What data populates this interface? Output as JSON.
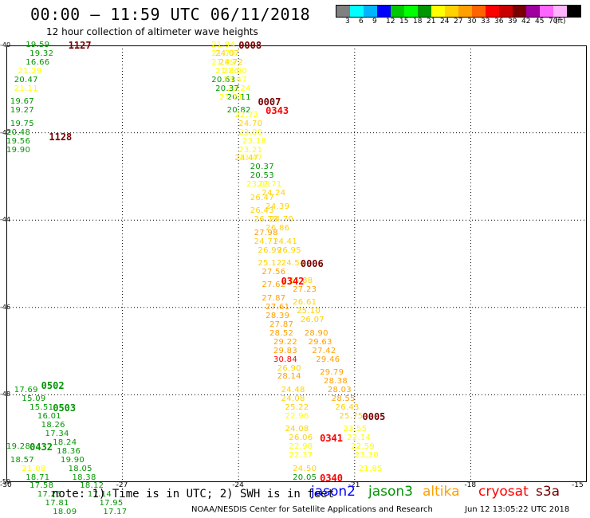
{
  "header": {
    "title": "00:00 – 11:59 UTC 06/11/2018",
    "subtitle": "12 hour collection of altimeter wave heights"
  },
  "legend": {
    "colors": [
      "#808080",
      "#00ffff",
      "#00b4ff",
      "#0000ff",
      "#00c800",
      "#00ff00",
      "#009600",
      "#ffff00",
      "#ffd200",
      "#ffa000",
      "#ff6400",
      "#ff0000",
      "#c80000",
      "#780000",
      "#a000a0",
      "#ff64ff",
      "#ffb4ff",
      "#000000"
    ],
    "labels": [
      "3",
      "6",
      "9",
      "12",
      "15",
      "18",
      "21",
      "24",
      "27",
      "30",
      "33",
      "36",
      "39",
      "42",
      "45",
      "70",
      "(ft)"
    ]
  },
  "axes": {
    "lat_labels": [
      "-40",
      "-42",
      "-44",
      "-46",
      "-48",
      "-50"
    ],
    "lon_labels": [
      "-30",
      "-27",
      "-24",
      "-21",
      "-18",
      "-15"
    ]
  },
  "observations": [
    {
      "lon": -29.5,
      "lat": -40.0,
      "v": "19.59",
      "c": "#009600"
    },
    {
      "lon": -29.4,
      "lat": -40.2,
      "v": "19.32",
      "c": "#009600"
    },
    {
      "lon": -29.5,
      "lat": -40.4,
      "v": "16.66",
      "c": "#009600"
    },
    {
      "lon": -29.7,
      "lat": -40.6,
      "v": "21.29",
      "c": "#ffff00"
    },
    {
      "lon": -29.8,
      "lat": -40.8,
      "v": "20.47",
      "c": "#009600"
    },
    {
      "lon": -29.8,
      "lat": -41.0,
      "v": "21.11",
      "c": "#ffff00"
    },
    {
      "lon": -29.9,
      "lat": -41.3,
      "v": "19.67",
      "c": "#009600"
    },
    {
      "lon": -29.9,
      "lat": -41.5,
      "v": "19.27",
      "c": "#009600"
    },
    {
      "lon": -29.9,
      "lat": -41.8,
      "v": "19.75",
      "c": "#009600"
    },
    {
      "lon": -30.0,
      "lat": -42.0,
      "v": "20.48",
      "c": "#009600"
    },
    {
      "lon": -30.0,
      "lat": -42.2,
      "v": "19.56",
      "c": "#009600"
    },
    {
      "lon": -30.0,
      "lat": -42.4,
      "v": "19.90",
      "c": "#009600"
    },
    {
      "lon": -24.7,
      "lat": -40.0,
      "v": "21.94",
      "c": "#ffff00"
    },
    {
      "lon": -24.7,
      "lat": -40.2,
      "v": "21.79",
      "c": "#ffff00"
    },
    {
      "lon": -24.6,
      "lat": -40.2,
      "v": "24.07",
      "c": "#ffd200"
    },
    {
      "lon": -24.5,
      "lat": -40.4,
      "v": "24.72",
      "c": "#ffd200"
    },
    {
      "lon": -24.7,
      "lat": -40.4,
      "v": "21.89",
      "c": "#ffff00"
    },
    {
      "lon": -24.6,
      "lat": -40.6,
      "v": "21.86",
      "c": "#ffff00"
    },
    {
      "lon": -24.4,
      "lat": -40.6,
      "v": "22.00",
      "c": "#ffff00"
    },
    {
      "lon": -24.7,
      "lat": -40.8,
      "v": "20.63",
      "c": "#009600"
    },
    {
      "lon": -24.4,
      "lat": -40.8,
      "v": "23.47",
      "c": "#ffff00"
    },
    {
      "lon": -24.3,
      "lat": -41.0,
      "v": "23.24",
      "c": "#ffff00"
    },
    {
      "lon": -24.6,
      "lat": -41.0,
      "v": "20.37",
      "c": "#009600"
    },
    {
      "lon": -24.3,
      "lat": -41.2,
      "v": "20.11",
      "c": "#009600"
    },
    {
      "lon": -24.5,
      "lat": -41.2,
      "v": "21.21",
      "c": "#ffff00"
    },
    {
      "lon": -24.3,
      "lat": -41.5,
      "v": "20.82",
      "c": "#009600"
    },
    {
      "lon": -24.1,
      "lat": -41.6,
      "v": "22.72",
      "c": "#ffff00"
    },
    {
      "lon": -24.0,
      "lat": -41.8,
      "v": "24.70",
      "c": "#ffd200"
    },
    {
      "lon": -24.0,
      "lat": -42.0,
      "v": "23.00",
      "c": "#ffff00"
    },
    {
      "lon": -23.9,
      "lat": -42.2,
      "v": "23.18",
      "c": "#ffff00"
    },
    {
      "lon": -24.0,
      "lat": -42.4,
      "v": "23.21",
      "c": "#ffff00"
    },
    {
      "lon": -24.1,
      "lat": -42.6,
      "v": "24.47",
      "c": "#ffd200"
    },
    {
      "lon": -24.0,
      "lat": -42.6,
      "v": "23.47",
      "c": "#ffff00"
    },
    {
      "lon": -23.7,
      "lat": -42.8,
      "v": "20.37",
      "c": "#009600"
    },
    {
      "lon": -23.7,
      "lat": -43.0,
      "v": "20.53",
      "c": "#009600"
    },
    {
      "lon": -23.8,
      "lat": -43.2,
      "v": "23.09",
      "c": "#ffff00"
    },
    {
      "lon": -23.5,
      "lat": -43.2,
      "v": "22.71",
      "c": "#ffff00"
    },
    {
      "lon": -23.4,
      "lat": -43.4,
      "v": "24.24",
      "c": "#ffd200"
    },
    {
      "lon": -23.7,
      "lat": -43.5,
      "v": "26.47",
      "c": "#ffd200"
    },
    {
      "lon": -23.3,
      "lat": -43.7,
      "v": "24.39",
      "c": "#ffd200"
    },
    {
      "lon": -23.7,
      "lat": -43.8,
      "v": "26.43",
      "c": "#ffd200"
    },
    {
      "lon": -23.2,
      "lat": -44.0,
      "v": "24.70",
      "c": "#ffd200"
    },
    {
      "lon": -23.6,
      "lat": -44.0,
      "v": "26.73",
      "c": "#ffd200"
    },
    {
      "lon": -23.3,
      "lat": -44.2,
      "v": "26.86",
      "c": "#ffd200"
    },
    {
      "lon": -23.6,
      "lat": -44.3,
      "v": "27.98",
      "c": "#ffa000"
    },
    {
      "lon": -23.1,
      "lat": -44.5,
      "v": "24.41",
      "c": "#ffd200"
    },
    {
      "lon": -23.6,
      "lat": -44.5,
      "v": "24.71",
      "c": "#ffd200"
    },
    {
      "lon": -23.0,
      "lat": -44.7,
      "v": "26.95",
      "c": "#ffd200"
    },
    {
      "lon": -23.5,
      "lat": -44.7,
      "v": "26.99",
      "c": "#ffd200"
    },
    {
      "lon": -22.9,
      "lat": -45.0,
      "v": "24.54",
      "c": "#ffd200"
    },
    {
      "lon": -23.5,
      "lat": -45.0,
      "v": "25.12",
      "c": "#ffd200"
    },
    {
      "lon": -23.4,
      "lat": -45.2,
      "v": "27.56",
      "c": "#ffa000"
    },
    {
      "lon": -22.7,
      "lat": -45.4,
      "v": "25.88",
      "c": "#ffd200"
    },
    {
      "lon": -23.4,
      "lat": -45.5,
      "v": "27.62",
      "c": "#ffa000"
    },
    {
      "lon": -22.6,
      "lat": -45.6,
      "v": "27.23",
      "c": "#ffa000"
    },
    {
      "lon": -23.4,
      "lat": -45.8,
      "v": "27.87",
      "c": "#ffa000"
    },
    {
      "lon": -22.6,
      "lat": -45.9,
      "v": "26.61",
      "c": "#ffd200"
    },
    {
      "lon": -23.3,
      "lat": -46.0,
      "v": "27.61",
      "c": "#ffa000"
    },
    {
      "lon": -22.5,
      "lat": -46.1,
      "v": "25.10",
      "c": "#ffd200"
    },
    {
      "lon": -23.3,
      "lat": -46.2,
      "v": "28.39",
      "c": "#ffa000"
    },
    {
      "lon": -22.4,
      "lat": -46.3,
      "v": "26.07",
      "c": "#ffd200"
    },
    {
      "lon": -23.2,
      "lat": -46.4,
      "v": "27.87",
      "c": "#ffa000"
    },
    {
      "lon": -22.3,
      "lat": -46.6,
      "v": "28.90",
      "c": "#ffa000"
    },
    {
      "lon": -23.2,
      "lat": -46.6,
      "v": "28.52",
      "c": "#ffa000"
    },
    {
      "lon": -22.2,
      "lat": -46.8,
      "v": "29.63",
      "c": "#ffa000"
    },
    {
      "lon": -23.1,
      "lat": -46.8,
      "v": "29.22",
      "c": "#ffa000"
    },
    {
      "lon": -22.1,
      "lat": -47.0,
      "v": "27.42",
      "c": "#ffa000"
    },
    {
      "lon": -23.1,
      "lat": -47.0,
      "v": "29.83",
      "c": "#ffa000"
    },
    {
      "lon": -23.1,
      "lat": -47.2,
      "v": "30.84",
      "c": "#ff0000"
    },
    {
      "lon": -22.0,
      "lat": -47.2,
      "v": "29.46",
      "c": "#ffa000"
    },
    {
      "lon": -23.0,
      "lat": -47.4,
      "v": "26.90",
      "c": "#ffd200"
    },
    {
      "lon": -21.9,
      "lat": -47.5,
      "v": "29.79",
      "c": "#ffa000"
    },
    {
      "lon": -23.0,
      "lat": -47.6,
      "v": "28.14",
      "c": "#ffa000"
    },
    {
      "lon": -21.8,
      "lat": -47.7,
      "v": "28.38",
      "c": "#ffa000"
    },
    {
      "lon": -22.9,
      "lat": -47.9,
      "v": "24.48",
      "c": "#ffd200"
    },
    {
      "lon": -21.7,
      "lat": -47.9,
      "v": "28.03",
      "c": "#ffa000"
    },
    {
      "lon": -22.9,
      "lat": -48.1,
      "v": "24.08",
      "c": "#ffd200"
    },
    {
      "lon": -21.6,
      "lat": -48.1,
      "v": "28.55",
      "c": "#ffa000"
    },
    {
      "lon": -22.8,
      "lat": -48.3,
      "v": "25.22",
      "c": "#ffd200"
    },
    {
      "lon": -21.5,
      "lat": -48.3,
      "v": "26.43",
      "c": "#ffd200"
    },
    {
      "lon": -22.8,
      "lat": -48.5,
      "v": "22.96",
      "c": "#ffff00"
    },
    {
      "lon": -21.4,
      "lat": -48.5,
      "v": "25.75",
      "c": "#ffd200"
    },
    {
      "lon": -22.8,
      "lat": -48.8,
      "v": "24.08",
      "c": "#ffd200"
    },
    {
      "lon": -21.3,
      "lat": -48.8,
      "v": "23.55",
      "c": "#ffff00"
    },
    {
      "lon": -22.7,
      "lat": -49.0,
      "v": "26.06",
      "c": "#ffd200"
    },
    {
      "lon": -21.2,
      "lat": -49.0,
      "v": "22.14",
      "c": "#ffff00"
    },
    {
      "lon": -22.7,
      "lat": -49.2,
      "v": "22.98",
      "c": "#ffff00"
    },
    {
      "lon": -21.1,
      "lat": -49.2,
      "v": "22.59",
      "c": "#ffff00"
    },
    {
      "lon": -22.7,
      "lat": -49.4,
      "v": "22.37",
      "c": "#ffff00"
    },
    {
      "lon": -21.0,
      "lat": -49.4,
      "v": "23.30",
      "c": "#ffff00"
    },
    {
      "lon": -22.6,
      "lat": -49.7,
      "v": "24.50",
      "c": "#ffd200"
    },
    {
      "lon": -20.9,
      "lat": -49.7,
      "v": "21.85",
      "c": "#ffff00"
    },
    {
      "lon": -22.6,
      "lat": -49.9,
      "v": "20.05",
      "c": "#009600"
    },
    {
      "lon": -29.8,
      "lat": -47.9,
      "v": "17.69",
      "c": "#009600"
    },
    {
      "lon": -29.6,
      "lat": -48.1,
      "v": "15.09",
      "c": "#009600"
    },
    {
      "lon": -29.4,
      "lat": -48.3,
      "v": "15.51",
      "c": "#009600"
    },
    {
      "lon": -29.2,
      "lat": -48.5,
      "v": "16.01",
      "c": "#009600"
    },
    {
      "lon": -29.1,
      "lat": -48.7,
      "v": "18.26",
      "c": "#009600"
    },
    {
      "lon": -29.0,
      "lat": -48.9,
      "v": "17.34",
      "c": "#009600"
    },
    {
      "lon": -28.8,
      "lat": -49.1,
      "v": "18.24",
      "c": "#009600"
    },
    {
      "lon": -28.7,
      "lat": -49.3,
      "v": "18.36",
      "c": "#009600"
    },
    {
      "lon": -30.0,
      "lat": -49.2,
      "v": "19.28",
      "c": "#009600"
    },
    {
      "lon": -28.6,
      "lat": -49.5,
      "v": "19.90",
      "c": "#009600"
    },
    {
      "lon": -29.9,
      "lat": -49.5,
      "v": "18.57",
      "c": "#009600"
    },
    {
      "lon": -28.4,
      "lat": -49.7,
      "v": "18.05",
      "c": "#009600"
    },
    {
      "lon": -29.6,
      "lat": -49.7,
      "v": "21.08",
      "c": "#ffff00"
    },
    {
      "lon": -28.3,
      "lat": -49.9,
      "v": "18.38",
      "c": "#009600"
    },
    {
      "lon": -29.5,
      "lat": -49.9,
      "v": "18.71",
      "c": "#009600"
    },
    {
      "lon": -28.1,
      "lat": -50.1,
      "v": "18.12",
      "c": "#009600"
    },
    {
      "lon": -29.4,
      "lat": -50.1,
      "v": "17.58",
      "c": "#009600"
    },
    {
      "lon": -27.9,
      "lat": -50.3,
      "v": "17.14",
      "c": "#009600"
    },
    {
      "lon": -29.2,
      "lat": -50.3,
      "v": "17.25",
      "c": "#009600"
    },
    {
      "lon": -27.6,
      "lat": -50.5,
      "v": "17.95",
      "c": "#009600"
    },
    {
      "lon": -29.0,
      "lat": -50.5,
      "v": "17.81",
      "c": "#009600"
    },
    {
      "lon": -27.5,
      "lat": -50.7,
      "v": "17.17",
      "c": "#009600"
    },
    {
      "lon": -28.8,
      "lat": -50.7,
      "v": "18.09",
      "c": "#009600"
    }
  ],
  "pass_times": [
    {
      "lon": -28.4,
      "lat": -40.0,
      "t": "1127",
      "c": "#780000"
    },
    {
      "lon": -28.9,
      "lat": -42.1,
      "t": "1128",
      "c": "#780000"
    },
    {
      "lon": -24.0,
      "lat": -40.0,
      "t": "0008",
      "c": "#780000"
    },
    {
      "lon": -23.5,
      "lat": -41.3,
      "t": "0007",
      "c": "#780000"
    },
    {
      "lon": -23.3,
      "lat": -41.5,
      "t": "0343",
      "c": "#ff0000"
    },
    {
      "lon": -22.4,
      "lat": -45.0,
      "t": "0006",
      "c": "#780000"
    },
    {
      "lon": -22.9,
      "lat": -45.4,
      "t": "0342",
      "c": "#ff0000"
    },
    {
      "lon": -20.8,
      "lat": -48.5,
      "t": "0005",
      "c": "#780000"
    },
    {
      "lon": -21.9,
      "lat": -49.0,
      "t": "0341",
      "c": "#ff0000"
    },
    {
      "lon": -21.9,
      "lat": -49.9,
      "t": "0340",
      "c": "#ff0000"
    },
    {
      "lon": -29.1,
      "lat": -47.8,
      "t": "0502",
      "c": "#009600"
    },
    {
      "lon": -28.8,
      "lat": -48.3,
      "t": "0503",
      "c": "#009600"
    },
    {
      "lon": -29.4,
      "lat": -49.2,
      "t": "0432",
      "c": "#009600"
    }
  ],
  "footer": {
    "note": "note: 1) Time is in UTC; 2) SWH is in feet",
    "satellites": [
      {
        "name": "jason2",
        "color": "#0000ff"
      },
      {
        "name": "jason3",
        "color": "#009600"
      },
      {
        "name": "altika",
        "color": "#ffa000"
      },
      {
        "name": "cryosat",
        "color": "#ff0000"
      },
      {
        "name": "s3a",
        "color": "#780000"
      }
    ],
    "credit": "NOAA/NESDIS Center for Satellite Applications and Research",
    "timestamp": "Jun 12 13:05:22 UTC 2018"
  }
}
